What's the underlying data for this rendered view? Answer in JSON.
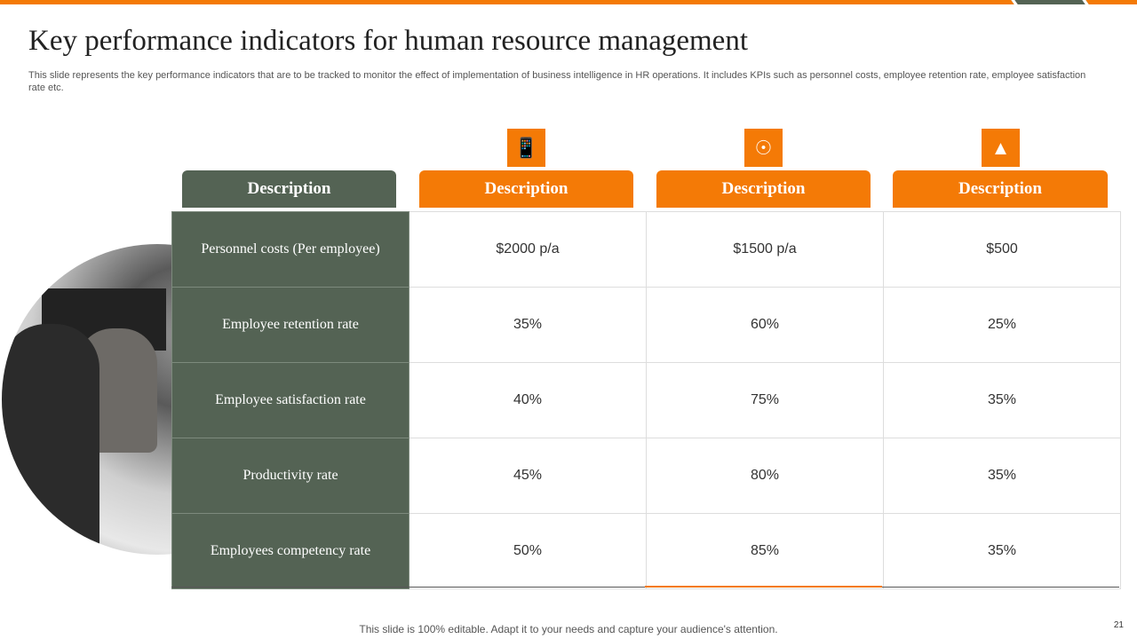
{
  "title": "Key performance indicators for human resource management",
  "subtitle": "This slide represents the key performance indicators that are to  be tracked to monitor the effect of implementation of business intelligence in HR operations. It includes KPIs such as personnel costs, employee retention rate, employee satisfaction rate etc.",
  "colors": {
    "accent": "#F47A06",
    "dark": "#546354"
  },
  "icons": [
    "mobile-person-icon",
    "person-target-icon",
    "shapes-icon"
  ],
  "headers": [
    "Description",
    "Description",
    "Description",
    "Description"
  ],
  "rows": [
    {
      "label": "Personnel costs (Per employee)",
      "values": [
        "$2000 p/a",
        "$1500 p/a",
        "$500"
      ]
    },
    {
      "label": "Employee retention rate",
      "values": [
        "35%",
        "60%",
        "25%"
      ]
    },
    {
      "label": "Employee satisfaction rate",
      "values": [
        "40%",
        "75%",
        "35%"
      ]
    },
    {
      "label": "Productivity rate",
      "values": [
        "45%",
        "80%",
        "35%"
      ]
    },
    {
      "label": "Employees competency rate",
      "values": [
        "50%",
        "85%",
        "35%"
      ]
    }
  ],
  "footer": "This slide is 100% editable. Adapt it to your needs and capture your audience's attention.",
  "page_number": "21"
}
